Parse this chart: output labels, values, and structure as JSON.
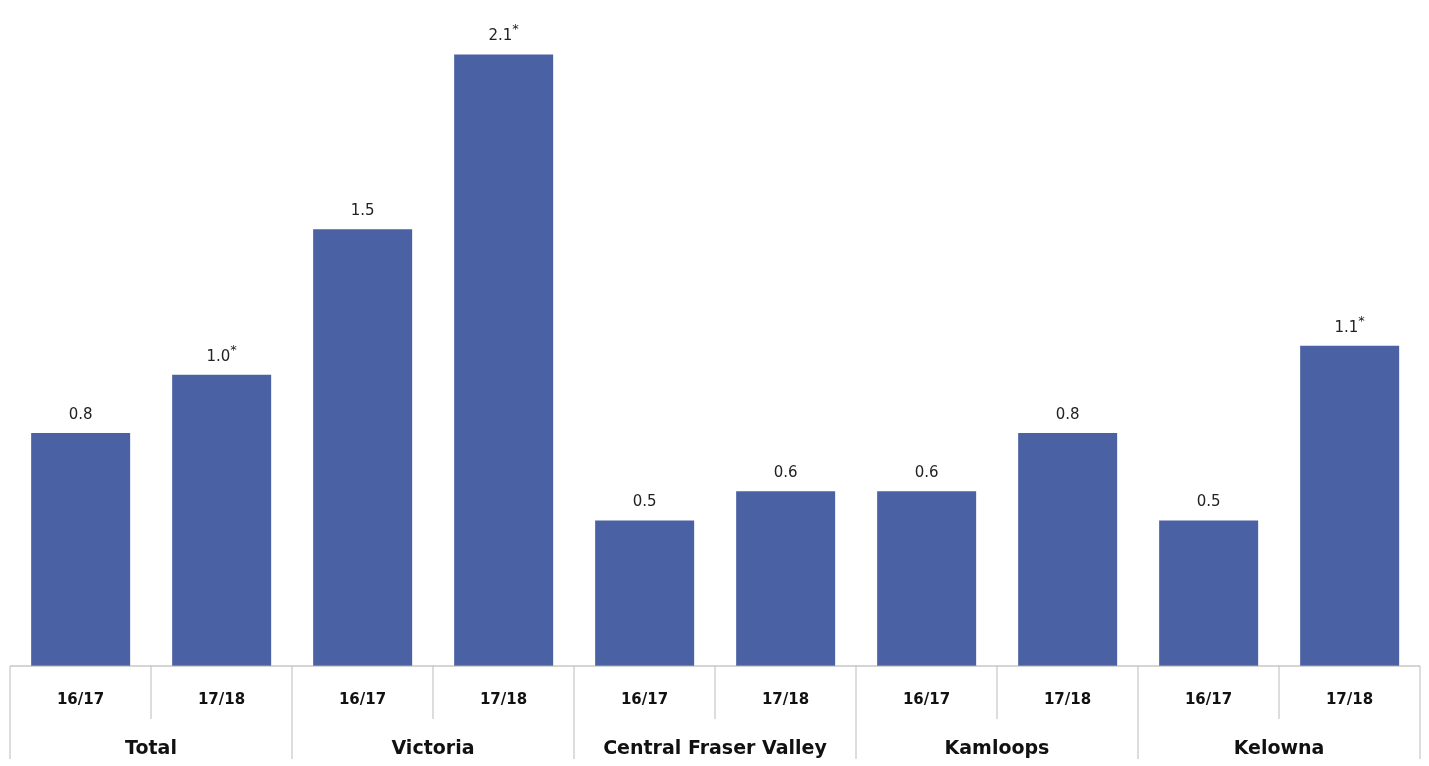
{
  "chart_data": {
    "type": "bar",
    "categories": [
      "16/17",
      "17/18",
      "16/17",
      "17/18",
      "16/17",
      "17/18",
      "16/17",
      "17/18",
      "16/17",
      "17/18"
    ],
    "values": [
      0.8,
      1.0,
      1.5,
      2.1,
      0.5,
      0.6,
      0.6,
      0.8,
      0.5,
      1.1
    ],
    "value_labels": [
      "0.8",
      "1.0$^{*}$",
      "1.5",
      "2.1$^{*}$",
      "0.5",
      "0.6",
      "0.6",
      "0.8",
      "0.5",
      "1.1$^{*}$"
    ],
    "color": "#4a61a3",
    "annotations": [
      "Total",
      "Victoria",
      "Central Fraser Valley",
      "Kamloops",
      "Kelowna"
    ],
    "grid": false,
    "legend": false
  }
}
